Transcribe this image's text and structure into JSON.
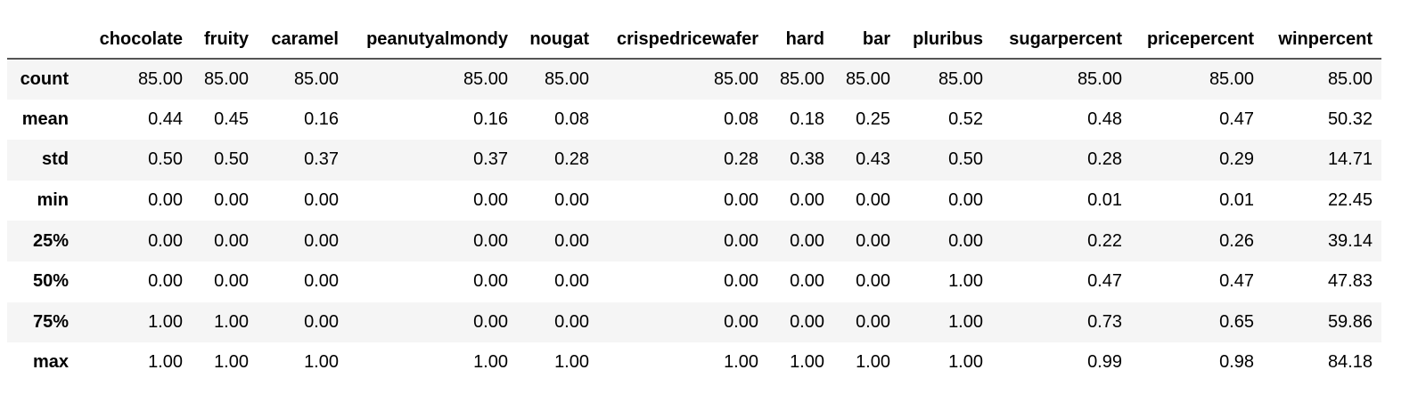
{
  "table": {
    "corner": "",
    "columns": [
      "chocolate",
      "fruity",
      "caramel",
      "peanutyalmondy",
      "nougat",
      "crispedricewafer",
      "hard",
      "bar",
      "pluribus",
      "sugarpercent",
      "pricepercent",
      "winpercent"
    ],
    "rows": [
      {
        "label": "count",
        "values": [
          "85.00",
          "85.00",
          "85.00",
          "85.00",
          "85.00",
          "85.00",
          "85.00",
          "85.00",
          "85.00",
          "85.00",
          "85.00",
          "85.00"
        ]
      },
      {
        "label": "mean",
        "values": [
          "0.44",
          "0.45",
          "0.16",
          "0.16",
          "0.08",
          "0.08",
          "0.18",
          "0.25",
          "0.52",
          "0.48",
          "0.47",
          "50.32"
        ]
      },
      {
        "label": "std",
        "values": [
          "0.50",
          "0.50",
          "0.37",
          "0.37",
          "0.28",
          "0.28",
          "0.38",
          "0.43",
          "0.50",
          "0.28",
          "0.29",
          "14.71"
        ]
      },
      {
        "label": "min",
        "values": [
          "0.00",
          "0.00",
          "0.00",
          "0.00",
          "0.00",
          "0.00",
          "0.00",
          "0.00",
          "0.00",
          "0.01",
          "0.01",
          "22.45"
        ]
      },
      {
        "label": "25%",
        "values": [
          "0.00",
          "0.00",
          "0.00",
          "0.00",
          "0.00",
          "0.00",
          "0.00",
          "0.00",
          "0.00",
          "0.22",
          "0.26",
          "39.14"
        ]
      },
      {
        "label": "50%",
        "values": [
          "0.00",
          "0.00",
          "0.00",
          "0.00",
          "0.00",
          "0.00",
          "0.00",
          "0.00",
          "1.00",
          "0.47",
          "0.47",
          "47.83"
        ]
      },
      {
        "label": "75%",
        "values": [
          "1.00",
          "1.00",
          "0.00",
          "0.00",
          "0.00",
          "0.00",
          "0.00",
          "0.00",
          "1.00",
          "0.73",
          "0.65",
          "59.86"
        ]
      },
      {
        "label": "max",
        "values": [
          "1.00",
          "1.00",
          "1.00",
          "1.00",
          "1.00",
          "1.00",
          "1.00",
          "1.00",
          "1.00",
          "0.99",
          "0.98",
          "84.18"
        ]
      }
    ]
  }
}
